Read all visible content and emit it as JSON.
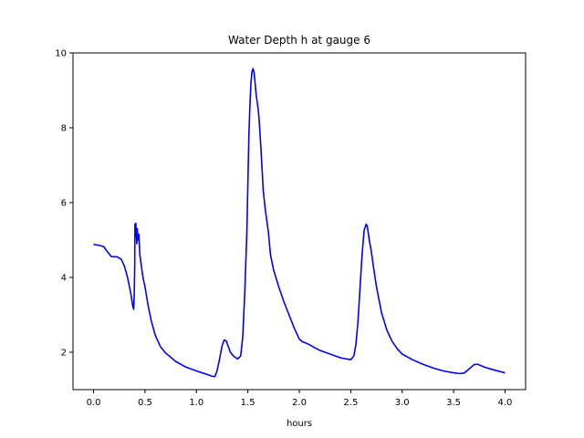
{
  "chart_data": {
    "type": "line",
    "title": "Water Depth h at gauge 6",
    "xlabel": "hours",
    "ylabel": "",
    "xlim": [
      -0.2,
      4.2
    ],
    "ylim": [
      1.0,
      10.0
    ],
    "xticks": [
      0.0,
      0.5,
      1.0,
      1.5,
      2.0,
      2.5,
      3.0,
      3.5,
      4.0
    ],
    "xtick_labels": [
      "0.0",
      "0.5",
      "1.0",
      "1.5",
      "2.0",
      "2.5",
      "3.0",
      "3.5",
      "4.0"
    ],
    "yticks": [
      2,
      4,
      6,
      8,
      10
    ],
    "ytick_labels": [
      "2",
      "4",
      "6",
      "8",
      "10"
    ],
    "grid": false,
    "legend": "none",
    "series": [
      {
        "color": "#0000ff",
        "x": [
          0.0,
          0.05,
          0.1,
          0.13,
          0.17,
          0.2,
          0.23,
          0.27,
          0.3,
          0.33,
          0.36,
          0.38,
          0.39,
          0.395,
          0.4,
          0.402,
          0.405,
          0.41,
          0.415,
          0.42,
          0.425,
          0.43,
          0.44,
          0.45,
          0.46,
          0.47,
          0.48,
          0.5,
          0.53,
          0.56,
          0.6,
          0.65,
          0.7,
          0.8,
          0.9,
          1.0,
          1.1,
          1.15,
          1.18,
          1.2,
          1.22,
          1.25,
          1.27,
          1.29,
          1.31,
          1.33,
          1.36,
          1.4,
          1.43,
          1.45,
          1.47,
          1.49,
          1.5,
          1.51,
          1.52,
          1.53,
          1.54,
          1.55,
          1.56,
          1.57,
          1.58,
          1.59,
          1.6,
          1.61,
          1.63,
          1.65,
          1.67,
          1.7,
          1.72,
          1.75,
          1.8,
          1.85,
          1.9,
          1.95,
          2.0,
          2.03,
          2.06,
          2.1,
          2.15,
          2.2,
          2.3,
          2.4,
          2.5,
          2.53,
          2.55,
          2.57,
          2.59,
          2.61,
          2.63,
          2.65,
          2.66,
          2.67,
          2.68,
          2.7,
          2.72,
          2.75,
          2.8,
          2.85,
          2.9,
          2.95,
          3.0,
          3.1,
          3.2,
          3.3,
          3.4,
          3.5,
          3.55,
          3.6,
          3.65,
          3.7,
          3.73,
          3.76,
          3.8,
          3.9,
          4.0
        ],
        "y": [
          4.88,
          4.86,
          4.82,
          4.7,
          4.56,
          4.55,
          4.55,
          4.48,
          4.3,
          4.0,
          3.6,
          3.25,
          3.15,
          3.5,
          4.3,
          5.42,
          5.1,
          5.45,
          5.2,
          4.9,
          5.3,
          5.0,
          5.15,
          4.6,
          4.4,
          4.2,
          4.0,
          3.75,
          3.25,
          2.85,
          2.45,
          2.15,
          1.98,
          1.75,
          1.6,
          1.5,
          1.41,
          1.36,
          1.35,
          1.5,
          1.75,
          2.18,
          2.33,
          2.3,
          2.15,
          2.0,
          1.9,
          1.82,
          1.9,
          2.4,
          3.6,
          5.2,
          6.5,
          7.8,
          8.6,
          9.2,
          9.5,
          9.58,
          9.48,
          9.2,
          8.9,
          8.7,
          8.5,
          8.2,
          7.3,
          6.3,
          5.8,
          5.2,
          4.6,
          4.2,
          3.75,
          3.35,
          3.0,
          2.65,
          2.35,
          2.28,
          2.25,
          2.2,
          2.12,
          2.05,
          1.95,
          1.85,
          1.8,
          1.9,
          2.2,
          2.8,
          3.7,
          4.6,
          5.25,
          5.42,
          5.38,
          5.2,
          5.0,
          4.7,
          4.3,
          3.75,
          3.05,
          2.6,
          2.3,
          2.1,
          1.95,
          1.8,
          1.68,
          1.58,
          1.5,
          1.45,
          1.43,
          1.44,
          1.55,
          1.67,
          1.68,
          1.65,
          1.6,
          1.52,
          1.45
        ]
      }
    ]
  }
}
